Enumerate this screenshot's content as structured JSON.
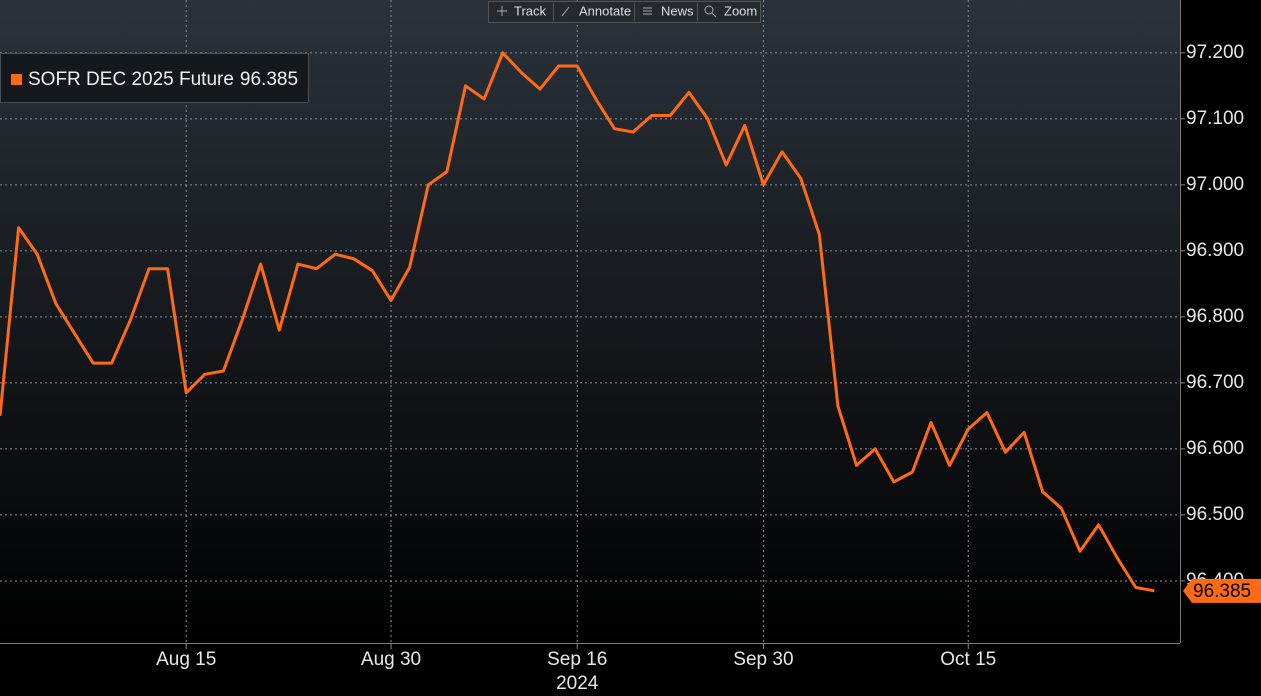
{
  "toolbar": [
    "Track",
    "Annotate",
    "News",
    "Zoom"
  ],
  "chart_data": {
    "type": "line",
    "x_sublabel": "2024",
    "categories": [
      null,
      null,
      null,
      null,
      null,
      null,
      null,
      null,
      null,
      null,
      "Aug 15",
      null,
      null,
      null,
      null,
      null,
      null,
      null,
      null,
      null,
      null,
      "Aug 30",
      null,
      null,
      null,
      null,
      null,
      null,
      null,
      null,
      null,
      "Sep 16",
      null,
      null,
      null,
      null,
      null,
      null,
      null,
      null,
      null,
      "Sep 30",
      null,
      null,
      null,
      null,
      null,
      null,
      null,
      null,
      null,
      null,
      "Oct 15",
      null,
      null,
      null,
      null,
      null,
      null,
      null,
      null,
      null,
      null
    ],
    "series": [
      {
        "name": "SOFR DEC 2025 Future",
        "color": "#ff6a13",
        "values": [
          96.65,
          96.935,
          96.895,
          96.82,
          96.775,
          96.73,
          96.73,
          96.795,
          96.873,
          96.873,
          96.685,
          96.713,
          96.718,
          96.795,
          96.88,
          96.78,
          96.88,
          96.873,
          96.895,
          96.888,
          96.87,
          96.825,
          96.875,
          97.0,
          97.02,
          97.15,
          97.13,
          97.2,
          97.17,
          97.145,
          97.18,
          97.18,
          97.13,
          97.085,
          97.08,
          97.105,
          97.105,
          97.14,
          97.1,
          97.03,
          97.09,
          97.0,
          97.05,
          97.01,
          96.925,
          96.665,
          96.575,
          96.6,
          96.55,
          96.565,
          96.64,
          96.575,
          96.63,
          96.655,
          96.595,
          96.625,
          96.535,
          96.51,
          96.445,
          96.485,
          96.435,
          96.39,
          96.385
        ]
      }
    ],
    "ylim": [
      96.306,
      97.28
    ],
    "yticks": [
      {
        "value": 96.4,
        "label": "96.400"
      },
      {
        "value": 96.5,
        "label": "96.500"
      },
      {
        "value": 96.6,
        "label": "96.600"
      },
      {
        "value": 96.7,
        "label": "96.700"
      },
      {
        "value": 96.8,
        "label": "96.800"
      },
      {
        "value": 96.9,
        "label": "96.900"
      },
      {
        "value": 97.0,
        "label": "97.000"
      },
      {
        "value": 97.1,
        "label": "97.100"
      },
      {
        "value": 97.2,
        "label": "97.200"
      }
    ],
    "grid": true,
    "legend": "top-left"
  }
}
